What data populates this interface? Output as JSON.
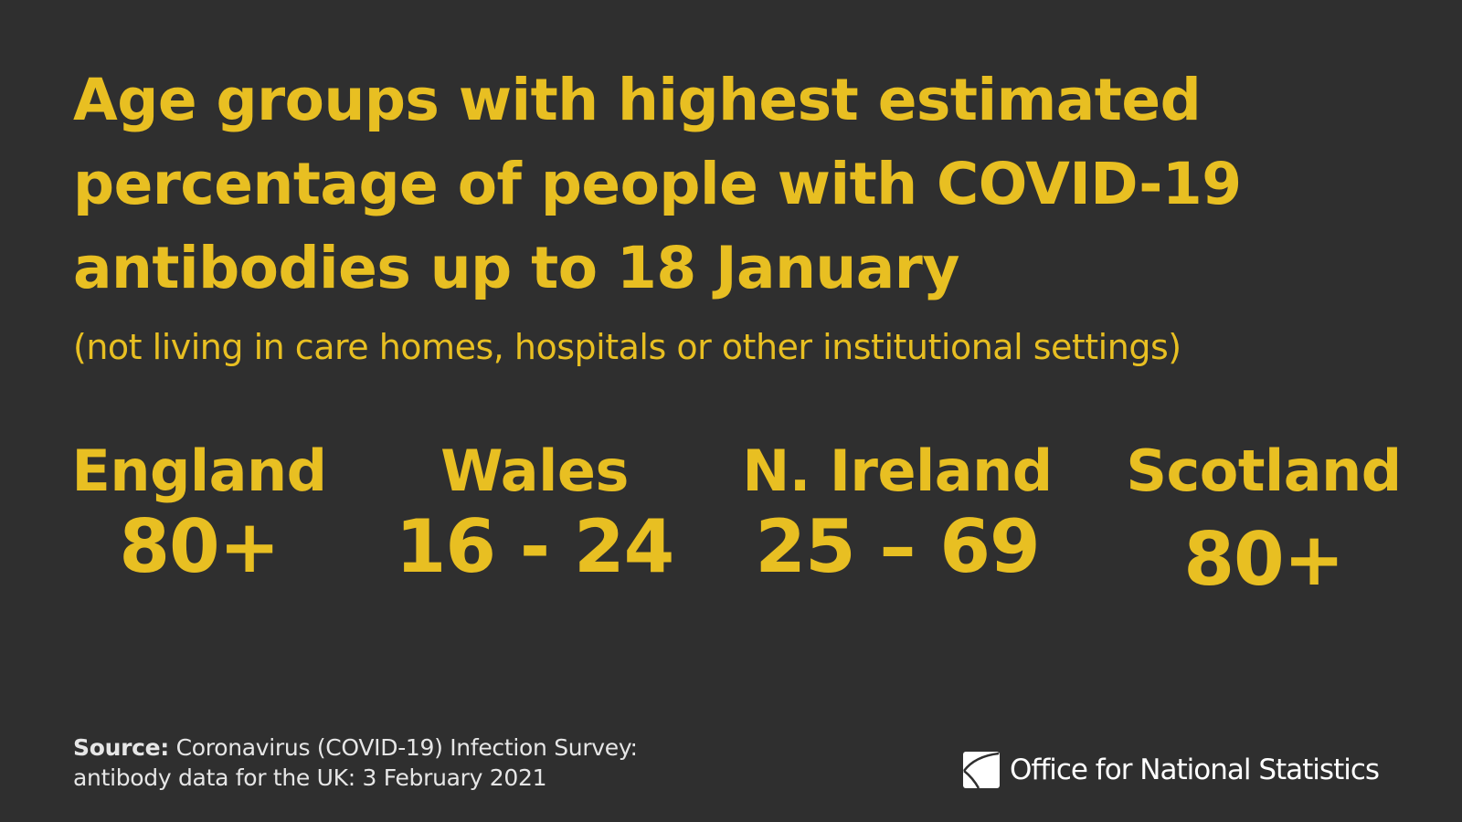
{
  "title": "Age groups with highest estimated percentage of people with COVID-19 antibodies up to 18 January",
  "subtitle": "(not living in care homes, hospitals or other institutional settings)",
  "regions": [
    {
      "name": "England",
      "age_group": "80+"
    },
    {
      "name": "Wales",
      "age_group": "16 - 24"
    },
    {
      "name": "N. Ireland",
      "age_group": "25 – 69"
    },
    {
      "name": "Scotland",
      "age_group": "80+"
    }
  ],
  "source": {
    "label": "Source:",
    "text": "Coronavirus (COVID-19) Infection Survey: antibody data for the UK: 3 February 2021"
  },
  "logo": {
    "text": "Office for National Statistics",
    "icon": "ons-logo-icon"
  },
  "colors": {
    "background": "#2f2f2f",
    "accent": "#e8bf22",
    "text": "#ffffff"
  }
}
